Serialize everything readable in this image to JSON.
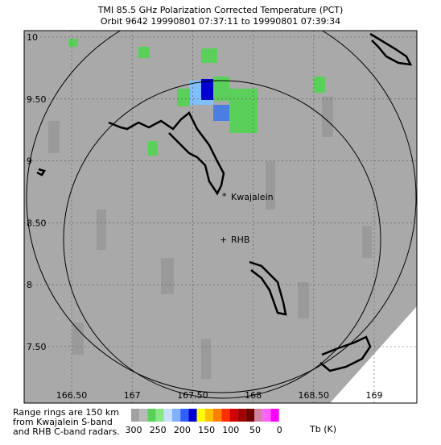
{
  "header": {
    "title": "TMI 85.5 GHz Polarization Corrected Temperature (PCT)",
    "subtitle": "Orbit 9642 19990801 07:37:11 to 19990801 07:39:34"
  },
  "map": {
    "lat_labels": [
      "10",
      "9.50",
      "9",
      "8.50",
      "8",
      "7.50"
    ],
    "lon_labels": [
      "166.50",
      "167",
      "167.50",
      "168",
      "168.50",
      "169"
    ],
    "places": [
      "Kwajalein",
      "RHB"
    ]
  },
  "footer": {
    "note": [
      "Range rings are 150 km",
      "from Kwajalein S-band",
      "and RHB C-band radars."
    ],
    "colorbar_labels": [
      "300",
      "250",
      "200",
      "150",
      "100",
      "50",
      "0"
    ],
    "colorbar_unit": "Tb (K)"
  }
}
